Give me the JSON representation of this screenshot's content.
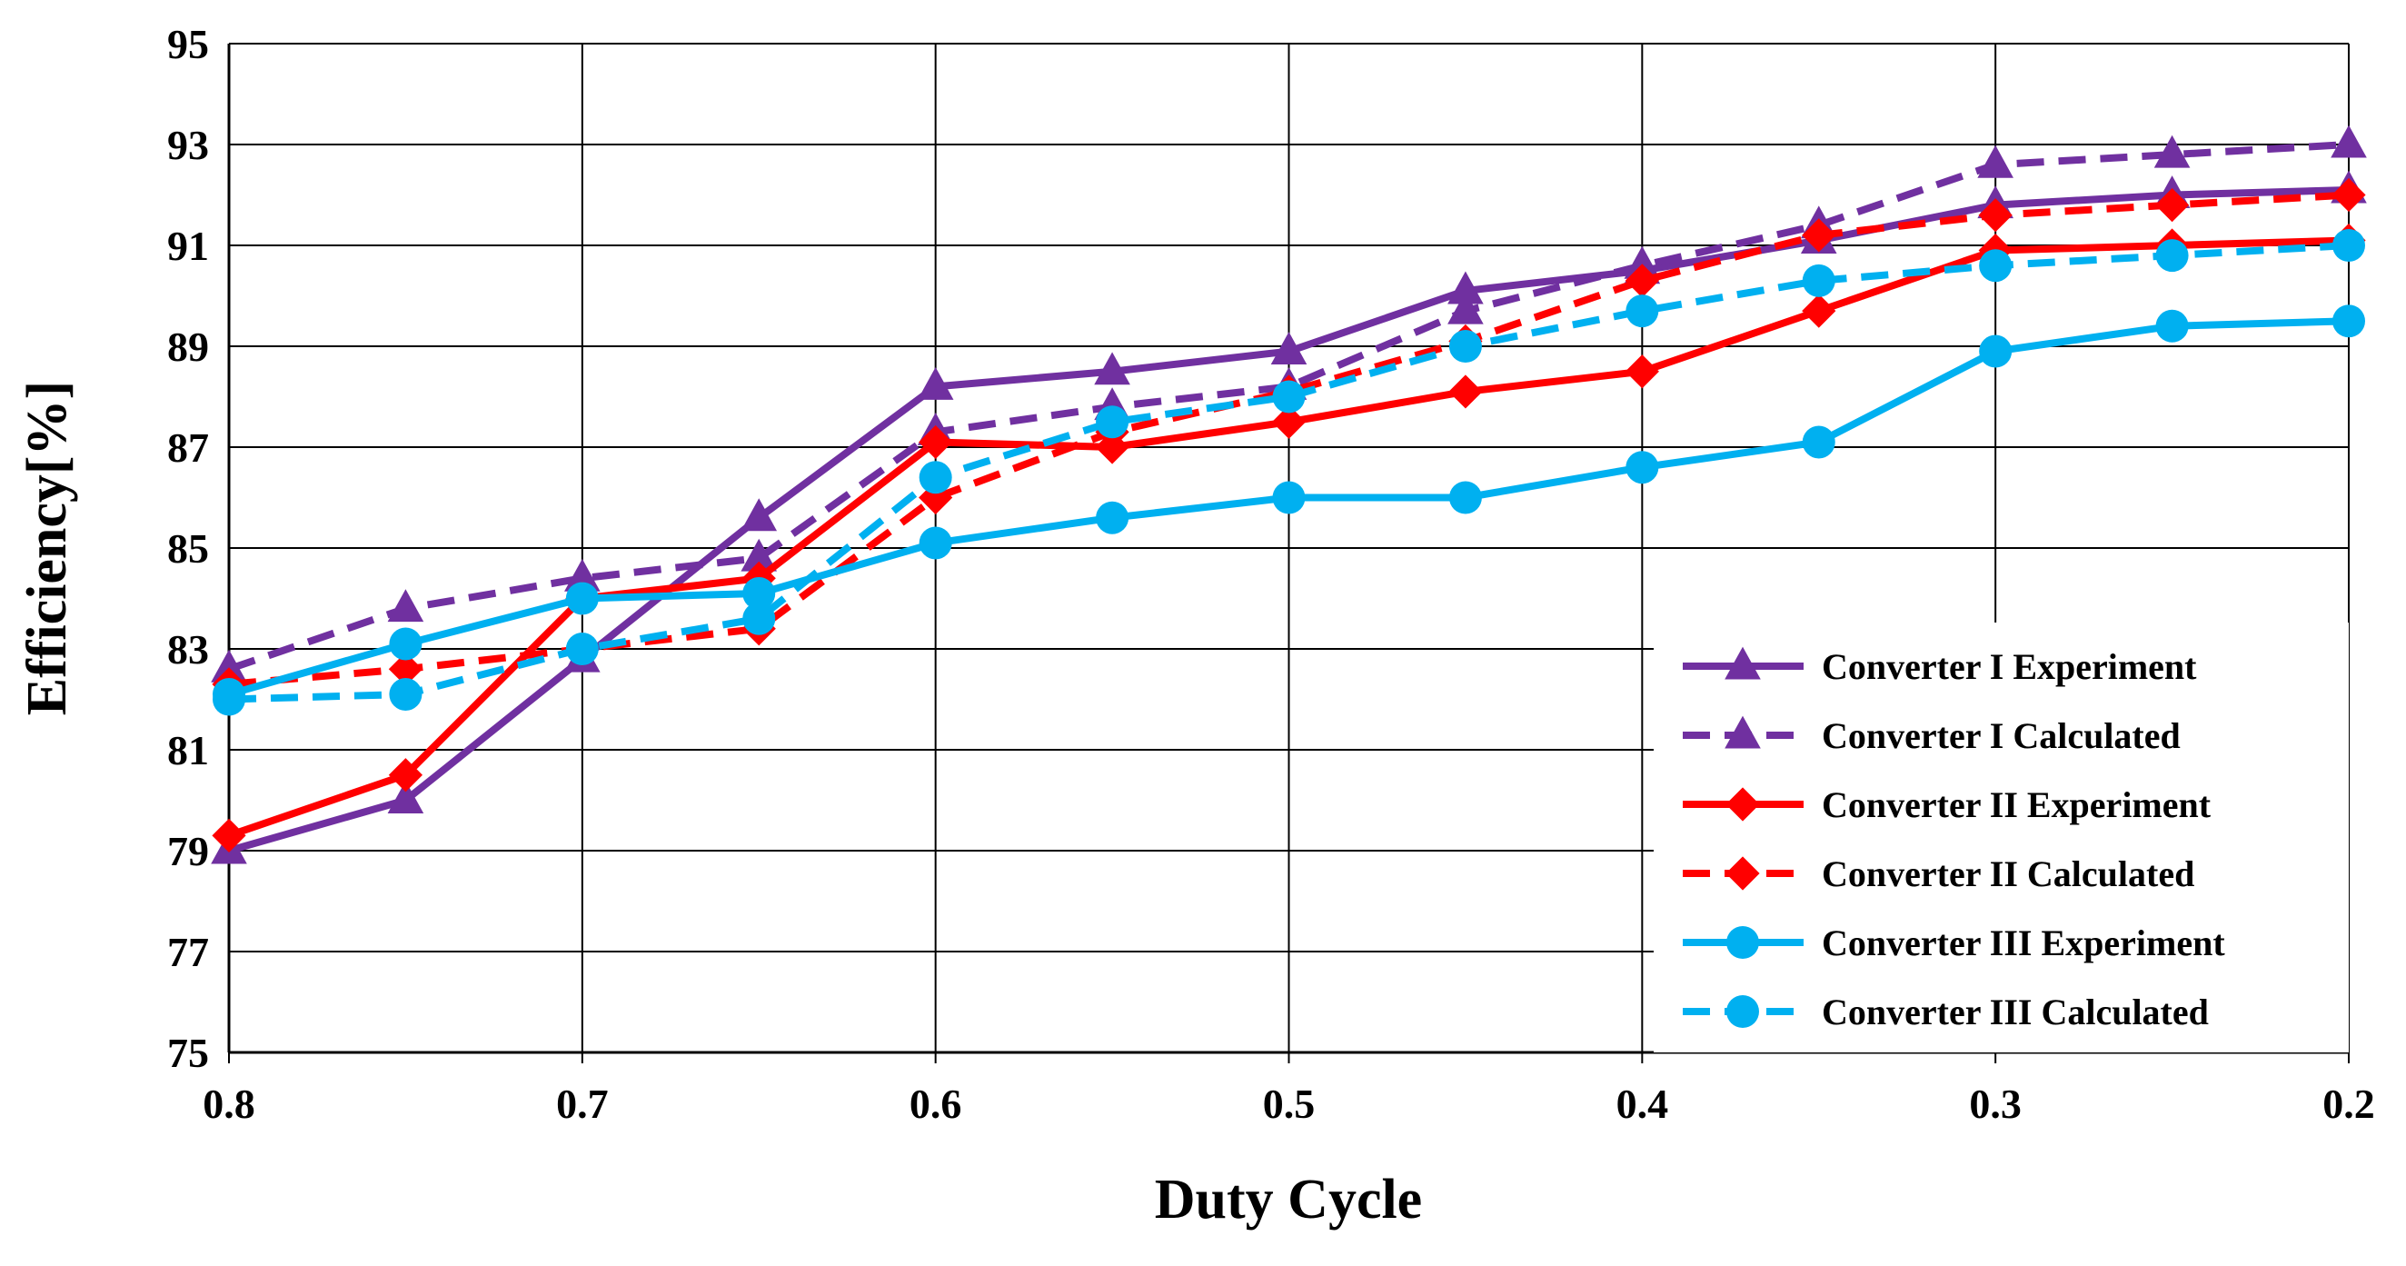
{
  "chart_data": {
    "type": "line",
    "title": "",
    "xlabel": "Duty Cycle",
    "ylabel": "Efficiency[%]",
    "x": [
      0.8,
      0.75,
      0.7,
      0.65,
      0.6,
      0.55,
      0.5,
      0.45,
      0.4,
      0.35,
      0.3,
      0.25,
      0.2
    ],
    "xlim": [
      0.8,
      0.2
    ],
    "x_reversed": true,
    "xticks": [
      "0.8",
      "0.7",
      "0.6",
      "0.5",
      "0.4",
      "0.3",
      "0.2"
    ],
    "xtick_values": [
      0.8,
      0.7,
      0.6,
      0.5,
      0.4,
      0.3,
      0.2
    ],
    "ylim": [
      75,
      95
    ],
    "yticks": [
      "75",
      "77",
      "79",
      "81",
      "83",
      "85",
      "87",
      "89",
      "91",
      "93",
      "95"
    ],
    "ytick_values": [
      75,
      77,
      79,
      81,
      83,
      85,
      87,
      89,
      91,
      93,
      95
    ],
    "grid": true,
    "legend_position": "bottom-right",
    "series": [
      {
        "name": "Converter I Experiment",
        "color": "#7030A0",
        "dash": "solid",
        "marker": "triangle",
        "values": [
          79.0,
          80.0,
          82.8,
          85.6,
          88.2,
          88.5,
          88.9,
          90.1,
          90.5,
          91.1,
          91.8,
          92.0,
          92.1
        ]
      },
      {
        "name": "Converter I Calculated",
        "color": "#7030A0",
        "dash": "dashed",
        "marker": "triangle",
        "values": [
          82.6,
          83.8,
          84.4,
          84.8,
          87.3,
          87.8,
          88.2,
          89.7,
          90.6,
          91.4,
          92.6,
          92.8,
          93.0
        ]
      },
      {
        "name": "Converter II Experiment",
        "color": "#FF0000",
        "dash": "solid",
        "marker": "diamond",
        "values": [
          79.3,
          80.5,
          84.0,
          84.4,
          87.1,
          87.0,
          87.5,
          88.1,
          88.5,
          89.7,
          90.9,
          91.0,
          91.1
        ]
      },
      {
        "name": "Converter II Calculated",
        "color": "#FF0000",
        "dash": "dashed",
        "marker": "diamond",
        "values": [
          82.3,
          82.6,
          83.0,
          83.4,
          86.0,
          87.3,
          88.1,
          89.1,
          90.3,
          91.2,
          91.6,
          91.8,
          92.0
        ]
      },
      {
        "name": "Converter III Experiment",
        "color": "#00B0F0",
        "dash": "solid",
        "marker": "circle",
        "values": [
          82.1,
          83.1,
          84.0,
          84.1,
          85.1,
          85.6,
          86.0,
          86.0,
          86.6,
          87.1,
          88.9,
          89.4,
          89.5
        ]
      },
      {
        "name": "Converter III Calculated",
        "color": "#00B0F0",
        "dash": "dashed",
        "marker": "circle",
        "values": [
          82.0,
          82.1,
          83.0,
          83.6,
          86.4,
          87.5,
          88.0,
          89.0,
          89.7,
          90.3,
          90.6,
          90.8,
          91.0
        ]
      }
    ]
  }
}
